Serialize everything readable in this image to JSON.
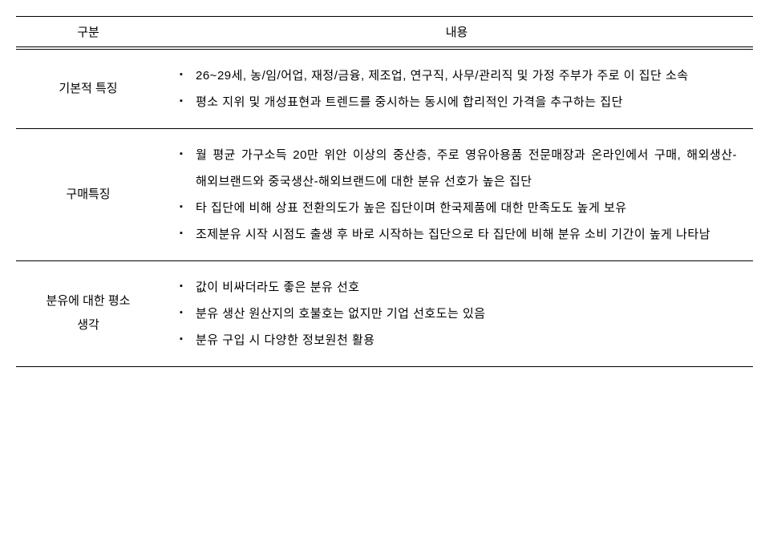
{
  "table": {
    "header": {
      "col1": "구분",
      "col2": "내용"
    },
    "rows": [
      {
        "label": "기본적 특징",
        "bullets": [
          "26~29세, 농/임/어업, 재정/금융, 제조업, 연구직, 사무/관리직 및 가정 주부가 주로 이 집단 소속",
          "평소 지위 및 개성표현과 트렌드를 중시하는 동시에 합리적인 가격을 추구하는 집단"
        ]
      },
      {
        "label": "구매특징",
        "bullets": [
          "월 평균 가구소득 20만 위안 이상의 중산층, 주로 영유아용품 전문매장과 온라인에서 구매, 해외생산-해외브랜드와 중국생산-해외브랜드에 대한 분유 선호가 높은 집단",
          "타 집단에 비해 상표 전환의도가 높은 집단이며 한국제품에 대한 만족도도 높게 보유",
          "조제분유 시작 시점도 출생 후 바로 시작하는 집단으로 타 집단에 비해 분유 소비 기간이 높게 나타남"
        ]
      },
      {
        "label": "분유에 대한 평소\n생각",
        "bullets": [
          "값이 비싸더라도 좋은 분유 선호",
          "분유 생산 원산지의 호불호는 없지만 기업 선호도는 있음",
          "분유 구입 시 다양한 정보원천 활용"
        ]
      }
    ]
  }
}
